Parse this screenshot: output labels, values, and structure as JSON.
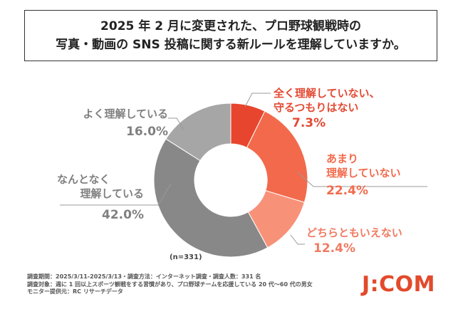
{
  "title": {
    "line1": "2025 年 2 月に変更された、プロ野球観戦時の",
    "line2": "写真・動画の SNS 投稿に関する新ルールを理解していますか。"
  },
  "chart_data": {
    "type": "pie",
    "variant": "donut",
    "categories": [
      "全く理解していない、守るつもりはない",
      "あまり理解していない",
      "どちらともいえない",
      "なんとなく理解している",
      "よく理解している"
    ],
    "values": [
      7.3,
      22.4,
      12.4,
      42.0,
      16.0
    ],
    "value_labels": [
      "7.3%",
      "22.4%",
      "12.4%",
      "42.0%",
      "16.0%"
    ],
    "colors": [
      "#e8452e",
      "#f26a4b",
      "#f79279",
      "#888888",
      "#a6a6a6"
    ],
    "n_note": "(n=331)"
  },
  "labels": {
    "s1": {
      "line1": "全く理解していない、",
      "line2": "守るつもりはない"
    },
    "s2": {
      "line1": "あまり",
      "line2": "理解していない"
    },
    "s3": {
      "line1": "どちらともいえない"
    },
    "s4": {
      "line1": "なんとなく",
      "line2": "理解している"
    },
    "s5": {
      "line1": "よく理解している"
    }
  },
  "footnote": {
    "line1": "調査期間：2025/3/11-2025/3/13・調査方法：インターネット調査・調査人数：331 名",
    "line2": "調査対象：週に 1 回以上スポーツ観戦をする習慣があり、プロ野球チームを応援している 20 代～60 代の男女",
    "line3": "モニター提供元：RC リサーチデータ"
  },
  "logo": {
    "text": "J:COM"
  }
}
